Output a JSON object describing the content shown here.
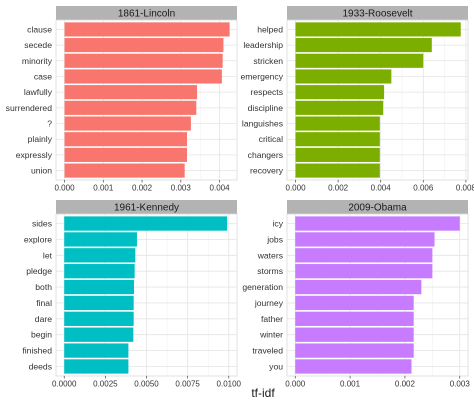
{
  "chart_data": {
    "type": "bar",
    "orientation": "horizontal",
    "xlabel": "tf-idf",
    "grid": true,
    "panels": [
      {
        "title": "1861-Lincoln",
        "color": "#F8766D",
        "categories": [
          "clause",
          "secede",
          "minority",
          "case",
          "lawfully",
          "surrendered",
          "?",
          "plainly",
          "expressly",
          "union"
        ],
        "values": [
          0.00426,
          0.0041,
          0.00408,
          0.00406,
          0.00342,
          0.0034,
          0.00326,
          0.00316,
          0.00316,
          0.0031
        ],
        "xlim": [
          -0.00022,
          0.00445
        ],
        "ticks": [
          0,
          0.001,
          0.002,
          0.003,
          0.004
        ],
        "tick_labels": [
          "0.000",
          "0.001",
          "0.002",
          "0.003",
          "0.004"
        ]
      },
      {
        "title": "1933-Roosevelt",
        "color": "#7CAE00",
        "categories": [
          "helped",
          "leadership",
          "stricken",
          "emergency",
          "respects",
          "discipline",
          "languishes",
          "critical",
          "changers",
          "recovery"
        ],
        "values": [
          0.00776,
          0.0064,
          0.006,
          0.0045,
          0.00416,
          0.00412,
          0.00396,
          0.00396,
          0.00396,
          0.00396
        ],
        "xlim": [
          -0.0004,
          0.0081
        ],
        "ticks": [
          0,
          0.002,
          0.004,
          0.006,
          0.008
        ],
        "tick_labels": [
          "0.000",
          "0.002",
          "0.004",
          "0.006",
          "0.008"
        ]
      },
      {
        "title": "1961-Kennedy",
        "color": "#00BFC4",
        "categories": [
          "sides",
          "explore",
          "let",
          "pledge",
          "both",
          "final",
          "dare",
          "begin",
          "finished",
          "deeds"
        ],
        "values": [
          0.0099,
          0.00442,
          0.00432,
          0.00428,
          0.00424,
          0.00422,
          0.00422,
          0.0042,
          0.0039,
          0.0039
        ],
        "xlim": [
          -0.0005,
          0.0105
        ],
        "ticks": [
          0,
          0.0025,
          0.005,
          0.0075,
          0.01
        ],
        "tick_labels": [
          "0.0000",
          "0.0025",
          "0.0050",
          "0.0075",
          "0.0100"
        ]
      },
      {
        "title": "2009-Obama",
        "color": "#C77CFF",
        "categories": [
          "icy",
          "jobs",
          "waters",
          "storms",
          "generation",
          "journey",
          "father",
          "winter",
          "traveled",
          "you"
        ],
        "values": [
          0.003,
          0.00254,
          0.0025,
          0.0025,
          0.0023,
          0.00216,
          0.00216,
          0.00216,
          0.00216,
          0.00212
        ],
        "xlim": [
          -0.00015,
          0.00315
        ],
        "ticks": [
          0,
          0.001,
          0.002,
          0.003
        ],
        "tick_labels": [
          "0.000",
          "0.001",
          "0.002",
          "0.003"
        ]
      }
    ]
  }
}
